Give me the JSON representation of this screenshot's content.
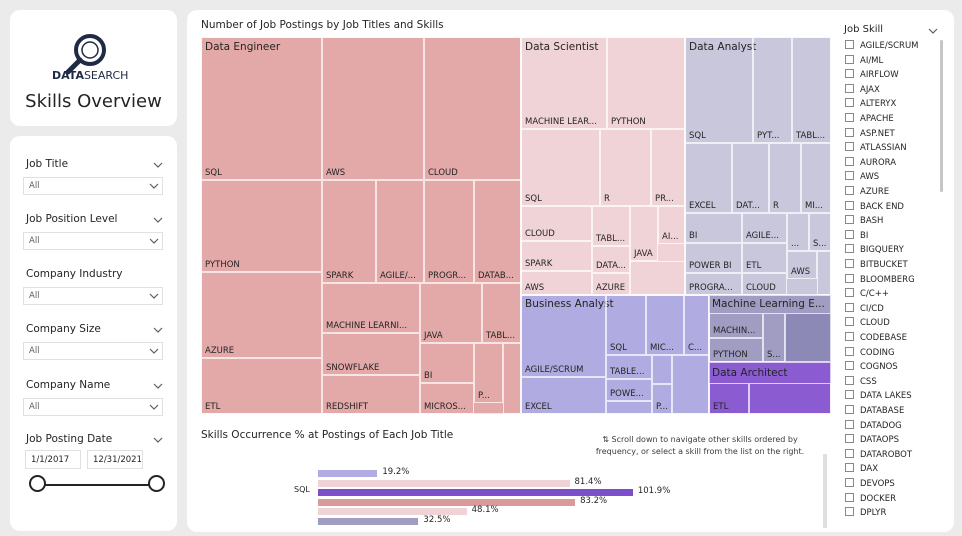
{
  "logo": {
    "brand_bold": "DATA",
    "brand_rest": "SEARCH"
  },
  "page_title": "Skills Overview",
  "filters": [
    {
      "label": "Job Title",
      "value": "All"
    },
    {
      "label": "Job Position Level",
      "value": "All"
    },
    {
      "label": "Company Industry",
      "value": "All"
    },
    {
      "label": "Company Size",
      "value": "All"
    },
    {
      "label": "Company Name",
      "value": "All"
    }
  ],
  "date_filter": {
    "label": "Job Posting Date",
    "start": "1/1/2017",
    "end": "12/31/2021"
  },
  "treemap": {
    "title": "Number of Job Postings by Job Titles and Skills",
    "groups": [
      "Data Engineer",
      "Data Scientist",
      "Data Analyst",
      "Business Analyst",
      "Machine Learning E...",
      "Data Architect"
    ],
    "colors": {
      "engineer": "#e3a8a8",
      "scientist": "#efd3d6",
      "analyst": "#c9c7dc",
      "business": "#b0abe0",
      "ml": "#a09cc2",
      "architect": "#8b5bd1"
    }
  },
  "skill_list": {
    "header": "Job Skill",
    "items": [
      "AGILE/SCRUM",
      "AI/ML",
      "AIRFLOW",
      "AJAX",
      "ALTERYX",
      "APACHE",
      "ASP.NET",
      "ATLASSIAN",
      "AURORA",
      "AWS",
      "AZURE",
      "BACK END",
      "BASH",
      "BI",
      "BIGQUERY",
      "BITBUCKET",
      "BLOOMBERG",
      "C/C++",
      "CI/CD",
      "CLOUD",
      "CODEBASE",
      "CODING",
      "COGNOS",
      "CSS",
      "DATA LAKES",
      "DATABASE",
      "DATADOG",
      "DATAOPS",
      "DATAROBOT",
      "DAX",
      "DEVOPS",
      "DOCKER",
      "DPLYR"
    ]
  },
  "bar_chart": {
    "title": "Skills Occurrence % at Postings of Each Job Title",
    "note": "⇅ Scroll down to navigate other skills ordered by frequency, or select a skill from the list on the right.",
    "category": "SQL",
    "bars": [
      {
        "value": 19.2,
        "label": "19.2%",
        "color": "#b0abe0"
      },
      {
        "value": 81.4,
        "label": "81.4%",
        "color": "#efd3d6"
      },
      {
        "value": 101.9,
        "label": "101.9%",
        "color": "#7b4fc9"
      },
      {
        "value": 83.2,
        "label": "83.2%",
        "color": "#d99a9a"
      },
      {
        "value": 48.1,
        "label": "48.1%",
        "color": "#efd3d6"
      },
      {
        "value": 32.5,
        "label": "32.5%",
        "color": "#a09cc2"
      }
    ]
  }
}
